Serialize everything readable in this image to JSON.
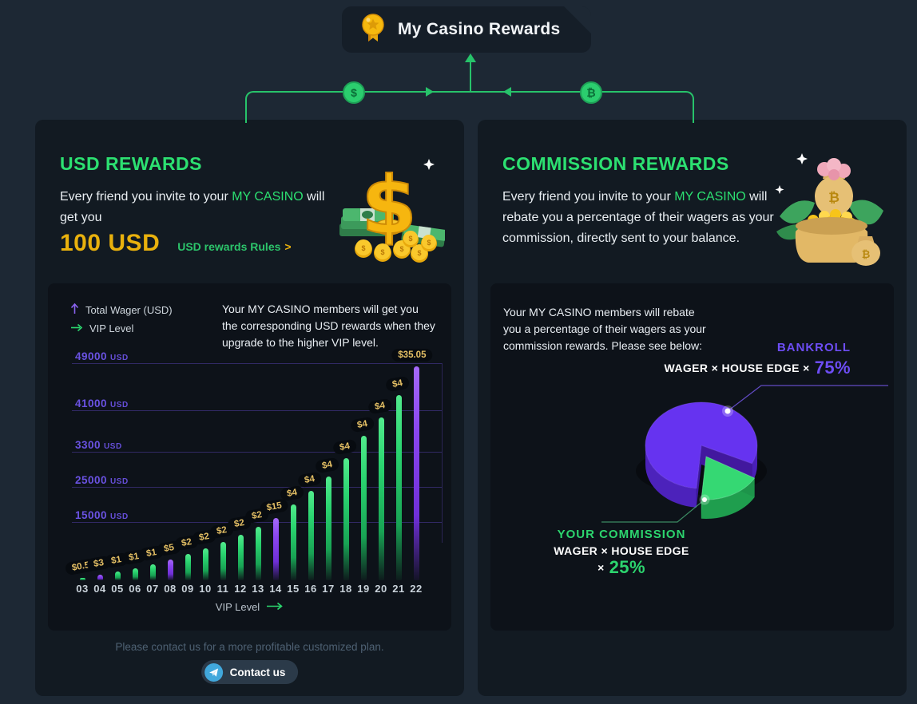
{
  "page": {
    "accent_green": "#2ce071",
    "accent_gold": "#e9b10d",
    "accent_purple": "#6d4df5",
    "background": "#1d2834",
    "panel_background": "#121a22"
  },
  "header": {
    "title": "My Casino Rewards",
    "icon": "medal-icon"
  },
  "connector": {
    "dollar_symbol": "$",
    "btc_symbol": "₿"
  },
  "usd_panel": {
    "title": "USD REWARDS",
    "desc_prefix": "Every friend you invite to your ",
    "brand": "MY CASINO",
    "desc_suffix": " will get you",
    "amount": "100 USD",
    "rules_label": "USD rewards Rules",
    "rules_chevron": ">",
    "hint": "Please contact us for a more profitable customized plan.",
    "contact_button": "Contact us"
  },
  "commission_panel": {
    "title": "COMMISSION REWARDS",
    "desc_prefix": "Every friend you invite to your ",
    "brand": "MY CASINO",
    "desc_suffix": " will rebate you a percentage of their wagers as your commission, directly sent to your balance."
  },
  "chart_data": [
    {
      "type": "bar",
      "note": "Your MY CASINO members will get you the corresponding USD rewards when they upgrade to the higher VIP level.",
      "legend": [
        {
          "label": "Total Wager (USD)",
          "color": "#8a63f0"
        },
        {
          "label": "VIP Level",
          "color": "#2bd96f"
        }
      ],
      "xlabel": "VIP Level",
      "y_unit": "USD",
      "y_ticks": [
        "49000",
        "41000",
        "3300",
        "25000",
        "15000"
      ],
      "categories": [
        "03",
        "04",
        "05",
        "06",
        "07",
        "08",
        "09",
        "10",
        "11",
        "12",
        "13",
        "14",
        "15",
        "16",
        "17",
        "18",
        "19",
        "20",
        "21",
        "22"
      ],
      "reward_labels": [
        "$0.5",
        "$3",
        "$1",
        "$1",
        "$1",
        "$5",
        "$2",
        "$2",
        "$2",
        "$2",
        "$2",
        "$15",
        "$4",
        "$4",
        "$4",
        "$4",
        "$4",
        "$4",
        "$4",
        "$35.05"
      ],
      "highlight_levels": [
        "04",
        "08",
        "14",
        "22"
      ],
      "relative_heights": [
        3,
        7,
        11,
        15,
        20,
        26,
        33,
        40,
        48,
        57,
        67,
        78,
        95,
        112,
        130,
        153,
        181,
        204,
        232,
        268
      ],
      "grid": true,
      "bar_color_green": "#2ad470",
      "bar_color_purple": "#8a46ef"
    },
    {
      "type": "pie",
      "note": "Your MY CASINO members will rebate you a percentage of their wagers as your commission rewards. Please see below:",
      "slices": [
        {
          "label": "BANKROLL",
          "formula": "WAGER × HOUSE EDGE ×",
          "pct_text": "75%",
          "value": 75,
          "color": "#6633f0"
        },
        {
          "label": "YOUR COMMISSION",
          "formula": "WAGER × HOUSE EDGE ×",
          "pct_text": "25%",
          "value": 25,
          "color": "#2dd36f"
        }
      ],
      "legend_position": "callouts"
    }
  ]
}
